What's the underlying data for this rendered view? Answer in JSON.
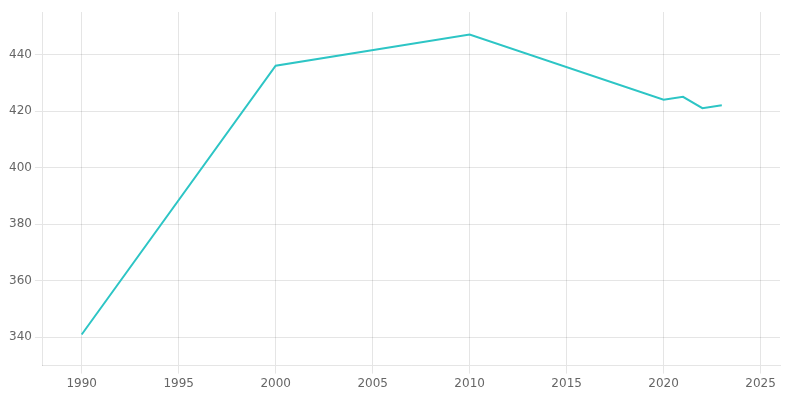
{
  "chart_data": {
    "type": "line",
    "x": [
      1990,
      2000,
      2010,
      2020,
      2021,
      2022,
      2023
    ],
    "values": [
      341,
      436,
      447,
      424,
      425,
      421,
      422
    ],
    "color": "#2dc5c5",
    "xlim": [
      1988,
      2026
    ],
    "ylim": [
      330,
      455
    ],
    "xticks": [
      1990,
      1995,
      2000,
      2005,
      2010,
      2015,
      2020,
      2025
    ],
    "yticks": [
      340,
      360,
      380,
      400,
      420,
      440
    ],
    "grid": true
  }
}
